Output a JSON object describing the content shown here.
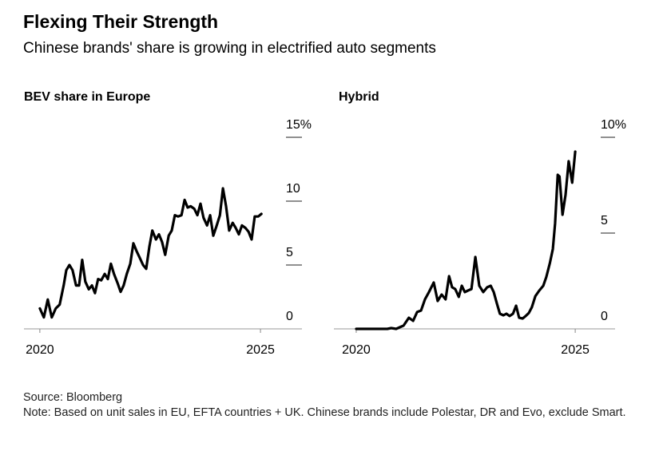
{
  "title": "Flexing Their Strength",
  "subtitle": "Chinese brands' share is growing in electrified auto segments",
  "source": "Source: Bloomberg",
  "note": "Note: Based on unit sales in EU, EFTA countries + UK. Chinese brands include Polestar, DR and Evo, exclude Smart.",
  "chart_data": [
    {
      "type": "line",
      "title": "BEV share in Europe",
      "x": [
        2020.0,
        2020.09,
        2020.18,
        2020.27,
        2020.36,
        2020.45,
        2020.54,
        2020.6,
        2020.67,
        2020.74,
        2020.82,
        2020.89,
        2020.96,
        2021.03,
        2021.11,
        2021.18,
        2021.25,
        2021.32,
        2021.39,
        2021.47,
        2021.54,
        2021.61,
        2021.68,
        2021.76,
        2021.83,
        2021.9,
        2021.97,
        2022.05,
        2022.12,
        2022.19,
        2022.26,
        2022.34,
        2022.41,
        2022.48,
        2022.55,
        2022.63,
        2022.7,
        2022.77,
        2022.84,
        2022.92,
        2022.99,
        2023.06,
        2023.13,
        2023.21,
        2023.28,
        2023.35,
        2023.42,
        2023.5,
        2023.57,
        2023.64,
        2023.71,
        2023.79,
        2023.86,
        2023.93,
        2024.0,
        2024.08,
        2024.15,
        2024.22,
        2024.29,
        2024.37,
        2024.44,
        2024.51,
        2024.58,
        2024.66,
        2024.73,
        2024.8,
        2024.87,
        2024.95,
        2025.02
      ],
      "series": [
        {
          "color": "#000000",
          "values": [
            1.6,
            0.9,
            2.3,
            0.9,
            1.6,
            1.9,
            3.4,
            4.6,
            5.0,
            4.6,
            3.4,
            3.4,
            5.4,
            3.7,
            3.1,
            3.4,
            2.8,
            3.9,
            3.8,
            4.3,
            3.9,
            5.1,
            4.3,
            3.6,
            2.9,
            3.4,
            4.3,
            5.1,
            6.7,
            6.1,
            5.6,
            5.0,
            4.7,
            6.4,
            7.7,
            7.0,
            7.4,
            6.8,
            5.8,
            7.3,
            7.7,
            8.9,
            8.8,
            8.9,
            10.1,
            9.5,
            9.6,
            9.4,
            8.9,
            9.8,
            8.7,
            8.1,
            8.9,
            7.3,
            8.0,
            8.9,
            11.0,
            9.6,
            7.7,
            8.3,
            7.9,
            7.4,
            8.1,
            7.9,
            7.6,
            7.0,
            8.8,
            8.8,
            9.0
          ]
        }
      ],
      "xlim": [
        2019.64,
        2025.94
      ],
      "xticks": [
        2020,
        2025
      ],
      "ylim": [
        0,
        15
      ],
      "yticks": [
        0,
        5,
        10,
        {
          "value": 15,
          "label": "15%"
        }
      ]
    },
    {
      "type": "line",
      "title": "Hybrid",
      "x": [
        2020.0,
        2020.26,
        2020.53,
        2020.71,
        2020.8,
        2020.91,
        2021.08,
        2021.2,
        2021.3,
        2021.39,
        2021.48,
        2021.57,
        2021.66,
        2021.77,
        2021.86,
        2021.95,
        2022.04,
        2022.12,
        2022.19,
        2022.26,
        2022.34,
        2022.41,
        2022.48,
        2022.55,
        2022.63,
        2022.72,
        2022.81,
        2022.9,
        2022.99,
        2023.07,
        2023.14,
        2023.21,
        2023.28,
        2023.36,
        2023.43,
        2023.5,
        2023.58,
        2023.65,
        2023.72,
        2023.8,
        2023.87,
        2023.94,
        2024.01,
        2024.09,
        2024.18,
        2024.27,
        2024.34,
        2024.42,
        2024.49,
        2024.54,
        2024.6,
        2024.64,
        2024.71,
        2024.78,
        2024.85,
        2024.93,
        2025.0
      ],
      "series": [
        {
          "color": "#000000",
          "values": [
            0,
            0,
            0,
            0,
            0.04,
            0,
            0.17,
            0.58,
            0.42,
            0.88,
            0.96,
            1.54,
            1.92,
            2.42,
            1.46,
            1.79,
            1.54,
            2.75,
            2.17,
            2.08,
            1.67,
            2.25,
            1.92,
            2.0,
            2.08,
            3.75,
            2.25,
            1.92,
            2.17,
            2.25,
            1.92,
            1.33,
            0.79,
            0.71,
            0.79,
            0.67,
            0.79,
            1.21,
            0.58,
            0.54,
            0.67,
            0.83,
            1.13,
            1.71,
            2.0,
            2.25,
            2.71,
            3.42,
            4.17,
            5.5,
            8.04,
            7.96,
            5.96,
            7.0,
            8.75,
            7.63,
            9.25
          ]
        }
      ],
      "xlim": [
        2019.49,
        2025.91
      ],
      "xticks": [
        2020,
        2025
      ],
      "ylim": [
        0,
        10
      ],
      "yticks": [
        0,
        5,
        {
          "value": 10,
          "label": "10%"
        }
      ]
    }
  ]
}
